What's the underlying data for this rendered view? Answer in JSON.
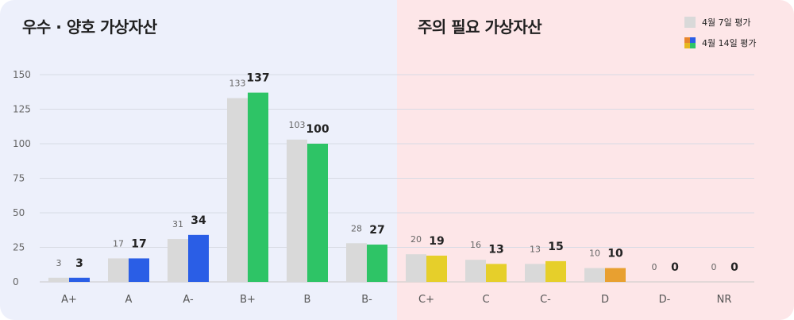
{
  "panels": {
    "left_title": "우수 · 양호 가상자산",
    "right_title": "주의 필요 가상자산"
  },
  "legend": {
    "prev_label": "4월 7일 평가",
    "curr_label": "4월 14일 평가"
  },
  "colors": {
    "prev": "#d9d9d9",
    "A_group": "#2a5ee6",
    "B_group": "#2ec466",
    "C_group": "#e6cf2a",
    "D_group": "#e8a030",
    "left_bg": "#edf0fb",
    "right_bg": "#fde6e8"
  },
  "chart_data": {
    "type": "bar",
    "categories": [
      "A+",
      "A",
      "A-",
      "B+",
      "B",
      "B-",
      "C+",
      "C",
      "C-",
      "D",
      "D-",
      "NR"
    ],
    "series": [
      {
        "name": "4월 7일 평가",
        "values": [
          3,
          17,
          31,
          133,
          103,
          28,
          20,
          16,
          13,
          10,
          0,
          0
        ]
      },
      {
        "name": "4월 14일 평가",
        "values": [
          3,
          17,
          34,
          137,
          100,
          27,
          19,
          13,
          15,
          10,
          0,
          0
        ]
      }
    ],
    "yticks": [
      0,
      25,
      50,
      75,
      100,
      125,
      150
    ],
    "ylim": [
      0,
      150
    ],
    "grid": true,
    "legend_position": "top-right"
  }
}
